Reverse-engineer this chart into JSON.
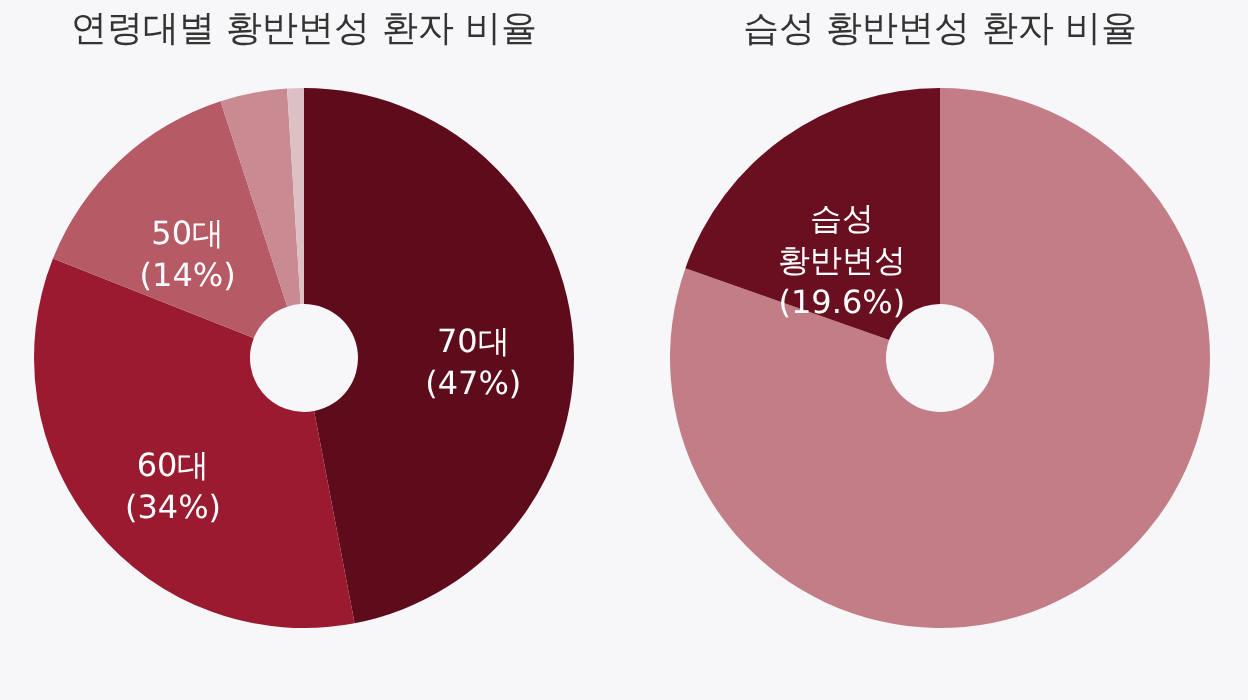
{
  "chart_data": [
    {
      "type": "donut",
      "title": "연령대별 황반변성 환자 비율",
      "categories": [
        "70대",
        "60대",
        "50대",
        null,
        null
      ],
      "values": [
        47,
        34,
        14,
        4,
        1
      ],
      "value_labels": [
        "(47%)",
        "(34%)",
        "(14%)",
        null,
        null
      ],
      "colors": [
        "#5e0b1c",
        "#9a1a30",
        "#b65a66",
        "#c98a92",
        "#dcc0c4"
      ],
      "legend": false
    },
    {
      "type": "donut",
      "title": "습성 황반변성 환자 비율",
      "categories": [
        null,
        "습성 황반변성"
      ],
      "values": [
        80.4,
        19.6
      ],
      "value_labels": [
        null,
        "(19.6%)"
      ],
      "colors": [
        "#c27d86",
        "#6a0f20"
      ],
      "legend": false
    }
  ]
}
